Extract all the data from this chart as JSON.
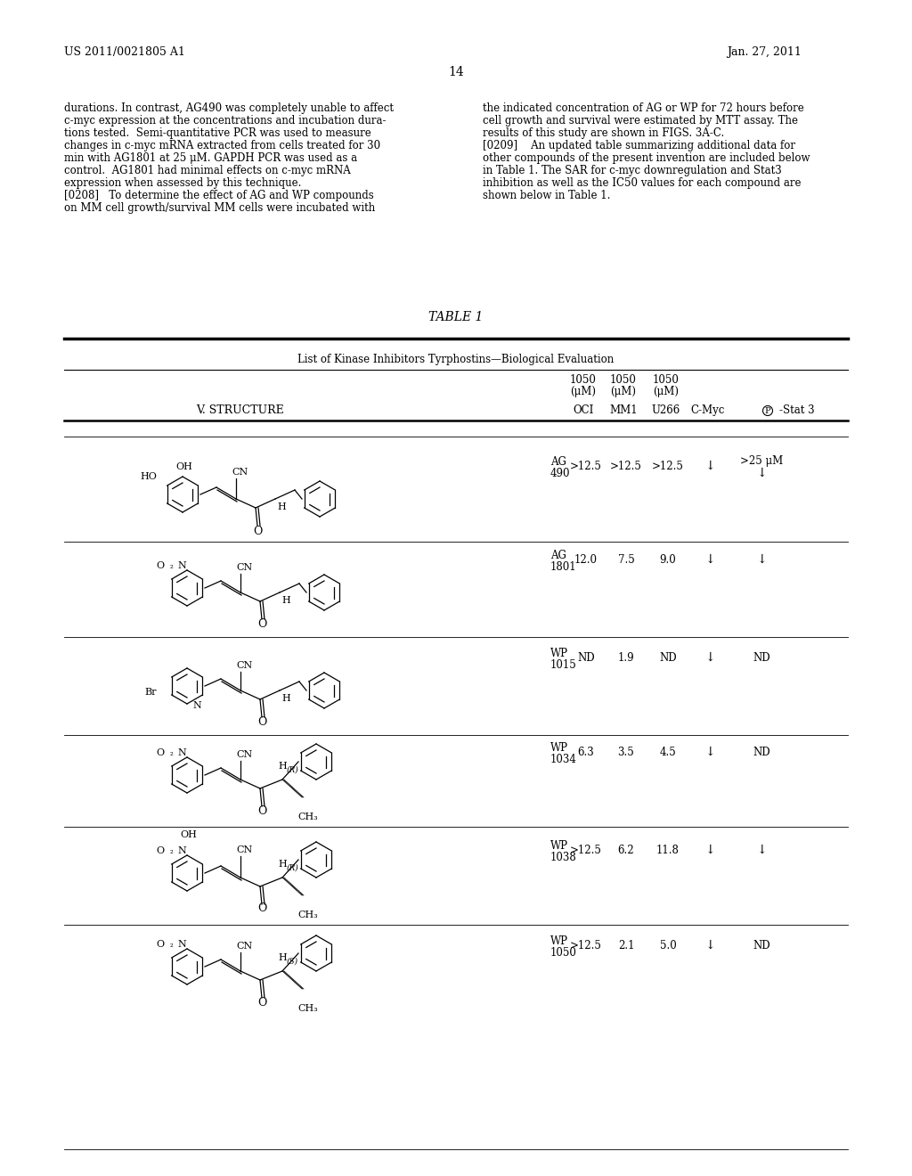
{
  "patent_number": "US 2011/0021805 A1",
  "date": "Jan. 27, 2011",
  "page_number": "14",
  "background_color": "#ffffff",
  "text_color": "#000000",
  "left_col_text": [
    "durations. In contrast, AG490 was completely unable to affect",
    "c-myc expression at the concentrations and incubation dura-",
    "tions tested.  Semi-quantitative PCR was used to measure",
    "changes in c-myc mRNA extracted from cells treated for 30",
    "min with AG1801 at 25 μM. GAPDH PCR was used as a",
    "control.  AG1801 had minimal effects on c-myc mRNA",
    "expression when assessed by this technique.",
    "[0208]   To determine the effect of AG and WP compounds",
    "on MM cell growth/survival MM cells were incubated with"
  ],
  "right_col_text": [
    "the indicated concentration of AG or WP for 72 hours before",
    "cell growth and survival were estimated by MTT assay. The",
    "results of this study are shown in FIGS. 3A-C.",
    "[0209]    An updated table summarizing additional data for",
    "other compounds of the present invention are included below",
    "in Table 1. The SAR for c-myc downregulation and Stat3",
    "inhibition as well as the IC50 values for each compound are",
    "shown below in Table 1."
  ],
  "table_title": "TABLE 1",
  "table_subtitle": "List of Kinase Inhibitors Tyrphostins—Biological Evaluation",
  "col_headers": [
    "V. STRUCTURE",
    "1050\n(μM)\nOCI",
    "1050\n(μM)\nMM1",
    "1050\n(μM)\nU266",
    "C-Myc",
    "Ⓟ-Stat 3"
  ],
  "rows": [
    {
      "compound": "AG\n490",
      "oci": ">12.5",
      "mm1": ">12.5",
      "u266": ">12.5",
      "cmyc": "↓",
      "stat3": ">25 μM\n↓"
    },
    {
      "compound": "AG\n1801",
      "oci": "12.0",
      "mm1": "7.5",
      "u266": "9.0",
      "cmyc": "↓",
      "stat3": "↓"
    },
    {
      "compound": "WP\n1015",
      "oci": "ND",
      "mm1": "1.9",
      "u266": "ND",
      "cmyc": "↓",
      "stat3": "ND"
    },
    {
      "compound": "WP\n1034",
      "oci": "6.3",
      "mm1": "3.5",
      "u266": "4.5",
      "cmyc": "↓",
      "stat3": "ND"
    },
    {
      "compound": "WP\n1038",
      "oci": ">12.5",
      "mm1": "6.2",
      "u266": "11.8",
      "cmyc": "↓",
      "stat3": "↓"
    },
    {
      "compound": "WP\n1050",
      "oci": ">12.5",
      "mm1": "2.1",
      "u266": "5.0",
      "cmyc": "↓",
      "stat3": "ND"
    }
  ]
}
